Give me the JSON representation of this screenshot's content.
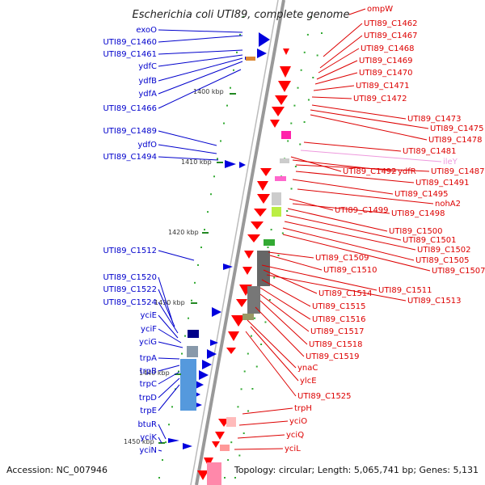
{
  "title": "Escherichia coli UTI89, complete genome",
  "footer": {
    "accession": "Accession: NC_007946",
    "topology": "Topology: circular; Length: 5,065,741 bp; Genes: 5,131"
  },
  "colors": {
    "left_labels": "#0000cc",
    "right_labels": "#dd0000",
    "faint_label": "#ee99dd",
    "backbone": "#888888",
    "forward_genes": "#0000dd",
    "reverse_genes": "#ff0000",
    "ticks": "#228822"
  },
  "ticks": [
    "1400 kbp",
    "1410 kbp",
    "1420 kbp",
    "1430 kbp",
    "1440 kbp",
    "1450 kbp"
  ],
  "left_genes": [
    "exoO",
    "UTI89_C1460",
    "UTI89_C1461",
    "ydfC",
    "ydfB",
    "ydfA",
    "UTI89_C1466",
    "UTI89_C1489",
    "ydfO",
    "UTI89_C1494",
    "UTI89_C1512",
    "UTI89_C1520",
    "UTI89_C1522",
    "UTI89_C1524",
    "yciE",
    "yciF",
    "yciG",
    "trpA",
    "trpB",
    "trpC",
    "trpD",
    "trpE",
    "btuR",
    "yciK",
    "yciN"
  ],
  "right_genes": [
    "ompW",
    "UTI89_C1462",
    "UTI89_C1467",
    "UTI89_C1468",
    "UTI89_C1469",
    "UTI89_C1470",
    "UTI89_C1471",
    "UTI89_C1472",
    "UTI89_C1473",
    "UTI89_C1475",
    "UTI89_C1478",
    "UTI89_C1481",
    "ileY",
    "UTI89_C1492",
    "ydfR",
    "UTI89_C1487",
    "UTI89_C1491",
    "UTI89_C1495",
    "nohA2",
    "UTI89_C1499",
    "UTI89_C1498",
    "UTI89_C1500",
    "UTI89_C1501",
    "UTI89_C1502",
    "UTI89_C1505",
    "UTI89_C1507",
    "UTI89_C1509",
    "UTI89_C1510",
    "UTI89_C1511",
    "UTI89_C1514",
    "UTI89_C1513",
    "UTI89_C1515",
    "UTI89_C1516",
    "UTI89_C1517",
    "UTI89_C1518",
    "UTI89_C1519",
    "ynaC",
    "ylcE",
    "UTI89_C1525",
    "trpH",
    "yciO",
    "yciQ",
    "yciL"
  ]
}
